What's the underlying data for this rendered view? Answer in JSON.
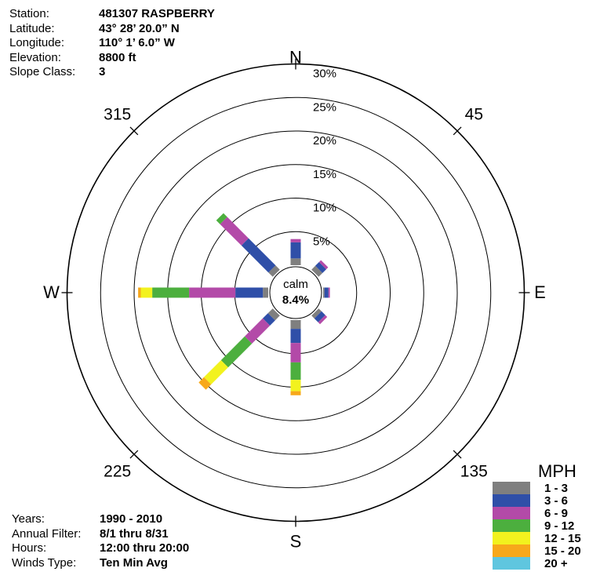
{
  "station": {
    "rows": [
      {
        "label": "Station:",
        "value": "481307  RASPBERRY"
      },
      {
        "label": "Latitude:",
        "value": "43° 28’ 20.0” N"
      },
      {
        "label": "Longitude:",
        "value": "110° 1’ 6.0” W"
      },
      {
        "label": "Elevation:",
        "value": "8800 ft"
      },
      {
        "label": "Slope Class:",
        "value": "3"
      }
    ]
  },
  "period": {
    "rows": [
      {
        "label": "Years:",
        "value": "1990 - 2010"
      },
      {
        "label": "Annual Filter:",
        "value": "8/1 thru 8/31"
      },
      {
        "label": "Hours:",
        "value": "12:00 thru 20:00"
      },
      {
        "label": "Winds Type:",
        "value": "Ten Min Avg"
      }
    ]
  },
  "chart_data": {
    "type": "wind-rose",
    "unit": "MPH",
    "calm": {
      "label": "calm",
      "value": "8.4%",
      "percent": 8.4
    },
    "rings": [
      5,
      10,
      15,
      20,
      25,
      30
    ],
    "ring_labels": [
      "5%",
      "10%",
      "15%",
      "20%",
      "25%",
      "30%"
    ],
    "direction_labels": [
      {
        "angle": 0,
        "text": "N"
      },
      {
        "angle": 45,
        "text": "45"
      },
      {
        "angle": 90,
        "text": "E"
      },
      {
        "angle": 135,
        "text": "135"
      },
      {
        "angle": 180,
        "text": "S"
      },
      {
        "angle": 225,
        "text": "225"
      },
      {
        "angle": 270,
        "text": "W"
      },
      {
        "angle": 315,
        "text": "315"
      }
    ],
    "speed_bins": [
      {
        "label": "1 - 3",
        "color": "#7f7f7f"
      },
      {
        "label": "3 - 6",
        "color": "#2f4fa8"
      },
      {
        "label": "6 - 9",
        "color": "#b34aa8"
      },
      {
        "label": "9 - 12",
        "color": "#4caf3e"
      },
      {
        "label": "12 - 15",
        "color": "#f2f21e"
      },
      {
        "label": "15 - 20",
        "color": "#f7a81b"
      },
      {
        "label": "20 +",
        "color": "#5fc6df"
      }
    ],
    "directions": [
      {
        "angle": 0,
        "segments": [
          1.0,
          2.4,
          0.5,
          0,
          0,
          0,
          0
        ]
      },
      {
        "angle": 45,
        "segments": [
          0.8,
          0.8,
          0.4,
          0,
          0,
          0,
          0
        ]
      },
      {
        "angle": 90,
        "segments": [
          0.2,
          0.6,
          0.2,
          0,
          0,
          0,
          0
        ]
      },
      {
        "angle": 135,
        "segments": [
          0.6,
          0.8,
          0.4,
          0,
          0,
          0,
          0
        ]
      },
      {
        "angle": 180,
        "segments": [
          1.3,
          2.1,
          2.9,
          2.6,
          1.7,
          0.6,
          0
        ]
      },
      {
        "angle": 225,
        "segments": [
          1.0,
          1.1,
          3.8,
          5.0,
          3.6,
          1.1,
          0
        ]
      },
      {
        "angle": 270,
        "segments": [
          0.8,
          4.1,
          6.9,
          5.5,
          1.7,
          0.4,
          0
        ]
      },
      {
        "angle": 315,
        "segments": [
          0.9,
          5.7,
          4.5,
          0.8,
          0,
          0,
          0
        ]
      }
    ]
  }
}
